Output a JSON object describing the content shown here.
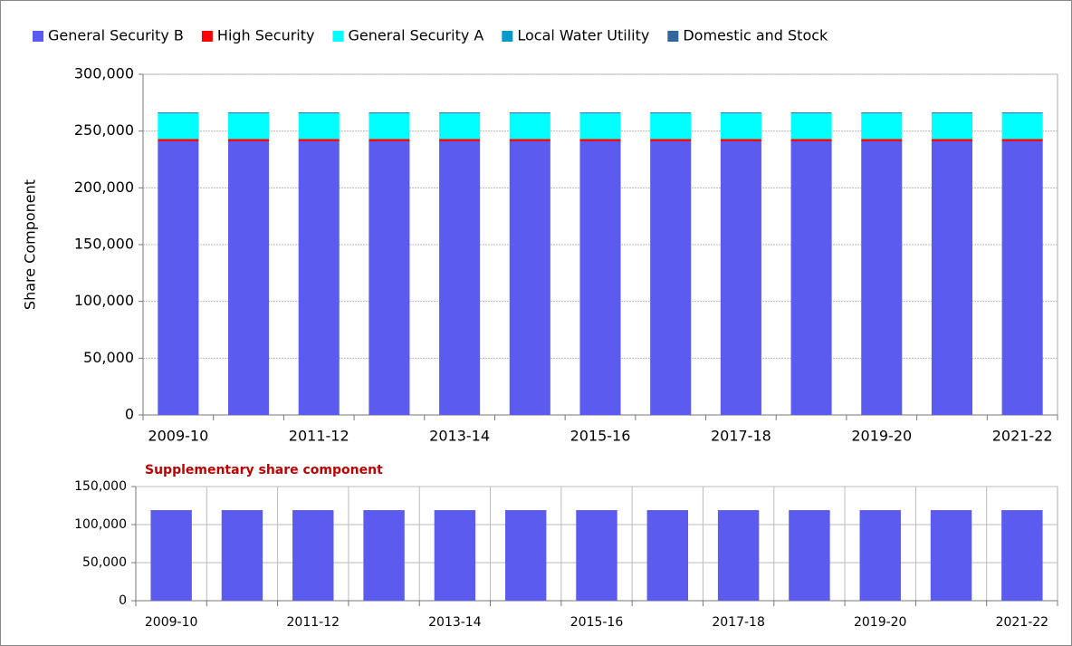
{
  "chart_data": [
    {
      "type": "stacked_bar",
      "y_label": "Share Component",
      "categories": [
        "2009-10",
        null,
        "2011-12",
        null,
        "2013-14",
        null,
        "2015-16",
        null,
        "2017-18",
        null,
        "2019-20",
        null,
        "2021-22"
      ],
      "series": [
        {
          "name": "General Security B",
          "color": "#5b5bf0",
          "values": [
            241000,
            241000,
            241000,
            241000,
            241000,
            241000,
            241000,
            241000,
            241000,
            241000,
            241000,
            241000,
            241000
          ]
        },
        {
          "name": "High Security",
          "color": "#ff0000",
          "values": [
            2000,
            2000,
            2000,
            2000,
            2000,
            2000,
            2000,
            2000,
            2000,
            2000,
            2000,
            2000,
            2000
          ]
        },
        {
          "name": "General Security A",
          "color": "#00ffff",
          "values": [
            22500,
            22500,
            22500,
            22500,
            22500,
            22500,
            22500,
            22500,
            22500,
            22500,
            22500,
            22500,
            22500
          ]
        },
        {
          "name": "Local Water Utility",
          "color": "#0099cc",
          "values": [
            500,
            500,
            500,
            500,
            500,
            500,
            500,
            500,
            500,
            500,
            500,
            500,
            500
          ]
        },
        {
          "name": "Domestic and Stock",
          "color": "#336699",
          "values": [
            500,
            500,
            500,
            500,
            500,
            500,
            500,
            500,
            500,
            500,
            500,
            500,
            500
          ]
        }
      ],
      "ylim": [
        0,
        300000
      ],
      "yticks": [
        0,
        {
          "value": 50000,
          "label": "50,000"
        },
        {
          "value": 100000,
          "label": "100,000"
        },
        {
          "value": 150000,
          "label": "150,000"
        },
        {
          "value": 200000,
          "label": "200,000"
        },
        {
          "value": 250000,
          "label": "250,000"
        },
        {
          "value": 300000,
          "label": "300,000"
        }
      ],
      "grid": true,
      "xgrid": false,
      "legend": "top"
    },
    {
      "type": "bar",
      "title": "Supplementary share component",
      "categories": [
        "2009-10",
        null,
        "2011-12",
        null,
        "2013-14",
        null,
        "2015-16",
        null,
        "2017-18",
        null,
        "2019-20",
        null,
        "2021-22"
      ],
      "values": [
        119000,
        119000,
        119000,
        119000,
        119000,
        119000,
        119000,
        119000,
        119000,
        119000,
        119000,
        119000,
        119000
      ],
      "color": "#5b5bf0",
      "ylim": [
        0,
        150000
      ],
      "yticks": [
        0,
        {
          "value": 50000,
          "label": "50,000"
        },
        {
          "value": 100000,
          "label": "100,000"
        },
        {
          "value": 150000,
          "label": "150,000"
        }
      ],
      "grid": true,
      "xgrid": true
    }
  ]
}
